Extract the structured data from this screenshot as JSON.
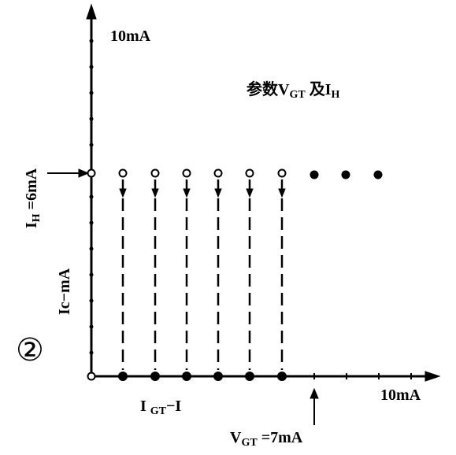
{
  "y_axis_end_label": "10mA",
  "parameter_note": {
    "prefix": "参数V",
    "sub1": "GT",
    "middle": " 及I",
    "sub2": "H"
  },
  "holding_current": {
    "main": "I",
    "sub": "H",
    "rest": " =6mA"
  },
  "y_axis_label": "Ic−mA",
  "figure_number": "②",
  "x_axis_label": {
    "main": "I ",
    "sub": "GT",
    "rest": "−I"
  },
  "x_axis_end_label": "10mA",
  "trigger_voltage": {
    "main": "V",
    "sub": "GT",
    "rest": " =7mA"
  }
}
